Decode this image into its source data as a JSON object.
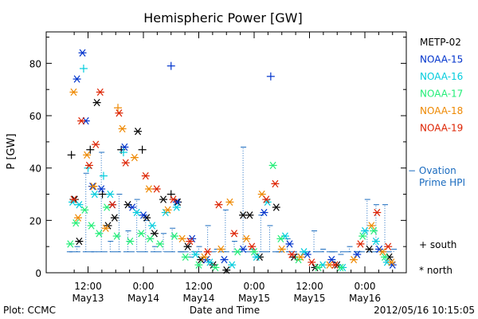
{
  "chart_data": {
    "type": "scatter",
    "title": "Hemispheric Power [GW]",
    "xlabel": "Date and Time",
    "ylabel": "P [GW]",
    "xlim": [
      0,
      4
    ],
    "ylim": [
      0,
      92
    ],
    "grid": false,
    "legend_position": "right",
    "y_ticks": [
      0,
      20,
      40,
      60,
      80
    ],
    "x_ticks": [
      {
        "x": 0.5,
        "line1": "12:00",
        "line2": "May13"
      },
      {
        "x": 1.0,
        "line1": "0:00",
        "line2": "May14"
      },
      {
        "x": 1.5,
        "line1": "12:00",
        "line2": "May14"
      },
      {
        "x": 2.0,
        "line1": "0:00",
        "line2": "May15"
      },
      {
        "x": 2.5,
        "line1": "12:00",
        "line2": "May15"
      },
      {
        "x": 3.0,
        "line1": "0:00",
        "line2": "May16"
      }
    ],
    "series": [
      {
        "name": "METP-02",
        "color": "#000000",
        "points": [
          {
            "x": 0.35,
            "y": 45,
            "m": "+"
          },
          {
            "x": 0.38,
            "y": 28,
            "m": "*"
          },
          {
            "x": 0.42,
            "y": 12,
            "m": "*"
          },
          {
            "x": 0.52,
            "y": 47,
            "m": "+"
          },
          {
            "x": 0.58,
            "y": 65,
            "m": "*"
          },
          {
            "x": 0.63,
            "y": 30,
            "m": "+"
          },
          {
            "x": 0.68,
            "y": 18,
            "m": "*"
          },
          {
            "x": 0.74,
            "y": 21,
            "m": "*"
          },
          {
            "x": 0.8,
            "y": 47,
            "m": "+"
          },
          {
            "x": 0.86,
            "y": 26,
            "m": "*"
          },
          {
            "x": 0.95,
            "y": 54,
            "m": "*"
          },
          {
            "x": 0.99,
            "y": 47,
            "m": "+"
          },
          {
            "x": 1.03,
            "y": 21,
            "m": "*"
          },
          {
            "x": 1.1,
            "y": 15,
            "m": "*"
          },
          {
            "x": 1.18,
            "y": 28,
            "m": "*"
          },
          {
            "x": 1.25,
            "y": 30,
            "m": "+"
          },
          {
            "x": 1.31,
            "y": 27,
            "m": "*"
          },
          {
            "x": 1.4,
            "y": 10,
            "m": "*"
          },
          {
            "x": 1.52,
            "y": 5,
            "m": "*"
          },
          {
            "x": 1.63,
            "y": 3,
            "m": "*"
          },
          {
            "x": 1.75,
            "y": 1,
            "m": "*"
          },
          {
            "x": 1.9,
            "y": 22,
            "m": "*"
          },
          {
            "x": 1.96,
            "y": 22,
            "m": "*"
          },
          {
            "x": 2.05,
            "y": 6,
            "m": "*"
          },
          {
            "x": 2.2,
            "y": 25,
            "m": "*"
          },
          {
            "x": 2.36,
            "y": 6,
            "m": "*"
          },
          {
            "x": 2.55,
            "y": 2,
            "m": "*"
          },
          {
            "x": 2.75,
            "y": 3,
            "m": "*"
          },
          {
            "x": 3.04,
            "y": 9,
            "m": "*"
          },
          {
            "x": 3.22,
            "y": 6,
            "m": "*"
          }
        ]
      },
      {
        "name": "NOAA-15",
        "color": "#0033cc",
        "points": [
          {
            "x": 0.4,
            "y": 74,
            "m": "*"
          },
          {
            "x": 0.45,
            "y": 84,
            "m": "*"
          },
          {
            "x": 0.48,
            "y": 58,
            "m": "*"
          },
          {
            "x": 0.54,
            "y": 33,
            "m": "*"
          },
          {
            "x": 0.62,
            "y": 32,
            "m": "*"
          },
          {
            "x": 0.72,
            "y": 26,
            "m": "*"
          },
          {
            "x": 0.83,
            "y": 48,
            "m": "*"
          },
          {
            "x": 0.9,
            "y": 25,
            "m": "*"
          },
          {
            "x": 1.0,
            "y": 22,
            "m": "*"
          },
          {
            "x": 1.25,
            "y": 79,
            "m": "+"
          },
          {
            "x": 1.3,
            "y": 27,
            "m": "*"
          },
          {
            "x": 1.44,
            "y": 13,
            "m": "*"
          },
          {
            "x": 1.57,
            "y": 5,
            "m": "*"
          },
          {
            "x": 1.73,
            "y": 5,
            "m": "*"
          },
          {
            "x": 1.9,
            "y": 9,
            "m": "*"
          },
          {
            "x": 2.09,
            "y": 23,
            "m": "*"
          },
          {
            "x": 2.15,
            "y": 75,
            "m": "+"
          },
          {
            "x": 2.32,
            "y": 11,
            "m": "*"
          },
          {
            "x": 2.48,
            "y": 7,
            "m": "*"
          },
          {
            "x": 2.7,
            "y": 5,
            "m": "*"
          },
          {
            "x": 2.93,
            "y": 7,
            "m": "*"
          },
          {
            "x": 3.13,
            "y": 9,
            "m": "*"
          },
          {
            "x": 3.25,
            "y": 3,
            "m": "*"
          }
        ]
      },
      {
        "name": "NOAA-16",
        "color": "#00ccdd",
        "points": [
          {
            "x": 0.36,
            "y": 27,
            "m": "*"
          },
          {
            "x": 0.42,
            "y": 26,
            "m": "*"
          },
          {
            "x": 0.46,
            "y": 78,
            "m": "+"
          },
          {
            "x": 0.5,
            "y": 40,
            "m": "+"
          },
          {
            "x": 0.56,
            "y": 30,
            "m": "*"
          },
          {
            "x": 0.64,
            "y": 37,
            "m": "+"
          },
          {
            "x": 0.7,
            "y": 30,
            "m": "*"
          },
          {
            "x": 0.82,
            "y": 46,
            "m": "+"
          },
          {
            "x": 0.94,
            "y": 23,
            "m": "*"
          },
          {
            "x": 1.08,
            "y": 18,
            "m": "*"
          },
          {
            "x": 1.2,
            "y": 23,
            "m": "*"
          },
          {
            "x": 1.3,
            "y": 25,
            "m": "*"
          },
          {
            "x": 1.47,
            "y": 7,
            "m": "*"
          },
          {
            "x": 1.6,
            "y": 4,
            "m": "*"
          },
          {
            "x": 1.8,
            "y": 3,
            "m": "*"
          },
          {
            "x": 2.02,
            "y": 6,
            "m": "*"
          },
          {
            "x": 2.12,
            "y": 27,
            "m": "*"
          },
          {
            "x": 2.28,
            "y": 14,
            "m": "*"
          },
          {
            "x": 2.45,
            "y": 8,
            "m": "*"
          },
          {
            "x": 2.62,
            "y": 3,
            "m": "*"
          },
          {
            "x": 2.8,
            "y": 2,
            "m": "*"
          },
          {
            "x": 3.0,
            "y": 16,
            "m": "*"
          },
          {
            "x": 3.1,
            "y": 12,
            "m": "*"
          },
          {
            "x": 3.2,
            "y": 4,
            "m": "*"
          }
        ]
      },
      {
        "name": "NOAA-17",
        "color": "#22ee77",
        "points": [
          {
            "x": 0.34,
            "y": 11,
            "m": "*"
          },
          {
            "x": 0.39,
            "y": 19,
            "m": "*"
          },
          {
            "x": 0.47,
            "y": 24,
            "m": "*"
          },
          {
            "x": 0.53,
            "y": 18,
            "m": "*"
          },
          {
            "x": 0.6,
            "y": 15,
            "m": "*"
          },
          {
            "x": 0.67,
            "y": 25,
            "m": "*"
          },
          {
            "x": 0.76,
            "y": 14,
            "m": "*"
          },
          {
            "x": 0.88,
            "y": 12,
            "m": "*"
          },
          {
            "x": 0.98,
            "y": 15,
            "m": "*"
          },
          {
            "x": 1.06,
            "y": 13,
            "m": "*"
          },
          {
            "x": 1.15,
            "y": 11,
            "m": "*"
          },
          {
            "x": 1.28,
            "y": 14,
            "m": "*"
          },
          {
            "x": 1.38,
            "y": 6,
            "m": "*"
          },
          {
            "x": 1.5,
            "y": 3,
            "m": "*"
          },
          {
            "x": 1.65,
            "y": 2,
            "m": "*"
          },
          {
            "x": 1.85,
            "y": 8,
            "m": "*"
          },
          {
            "x": 2.0,
            "y": 8,
            "m": "*"
          },
          {
            "x": 2.17,
            "y": 41,
            "m": "*"
          },
          {
            "x": 2.24,
            "y": 13,
            "m": "*"
          },
          {
            "x": 2.4,
            "y": 5,
            "m": "*"
          },
          {
            "x": 2.58,
            "y": 2,
            "m": "*"
          },
          {
            "x": 2.78,
            "y": 2,
            "m": "*"
          },
          {
            "x": 2.98,
            "y": 14,
            "m": "*"
          },
          {
            "x": 3.08,
            "y": 16,
            "m": "*"
          },
          {
            "x": 3.18,
            "y": 6,
            "m": "*"
          }
        ]
      },
      {
        "name": "NOAA-18",
        "color": "#ee8800",
        "points": [
          {
            "x": 0.37,
            "y": 69,
            "m": "*"
          },
          {
            "x": 0.41,
            "y": 21,
            "m": "*"
          },
          {
            "x": 0.49,
            "y": 45,
            "m": "*"
          },
          {
            "x": 0.55,
            "y": 33,
            "m": "*"
          },
          {
            "x": 0.66,
            "y": 17,
            "m": "*"
          },
          {
            "x": 0.77,
            "y": 63,
            "m": "+"
          },
          {
            "x": 0.81,
            "y": 55,
            "m": "*"
          },
          {
            "x": 0.92,
            "y": 44,
            "m": "*"
          },
          {
            "x": 1.05,
            "y": 32,
            "m": "*"
          },
          {
            "x": 1.22,
            "y": 24,
            "m": "*"
          },
          {
            "x": 1.35,
            "y": 13,
            "m": "*"
          },
          {
            "x": 1.55,
            "y": 6,
            "m": "*"
          },
          {
            "x": 1.7,
            "y": 9,
            "m": "*"
          },
          {
            "x": 1.78,
            "y": 27,
            "m": "*"
          },
          {
            "x": 1.93,
            "y": 13,
            "m": "*"
          },
          {
            "x": 2.07,
            "y": 30,
            "m": "*"
          },
          {
            "x": 2.25,
            "y": 9,
            "m": "*"
          },
          {
            "x": 2.42,
            "y": 6,
            "m": "*"
          },
          {
            "x": 2.68,
            "y": 3,
            "m": "*"
          },
          {
            "x": 2.9,
            "y": 5,
            "m": "*"
          },
          {
            "x": 3.06,
            "y": 18,
            "m": "*"
          },
          {
            "x": 3.16,
            "y": 8,
            "m": "*"
          },
          {
            "x": 3.24,
            "y": 4,
            "m": "*"
          }
        ]
      },
      {
        "name": "NOAA-19",
        "color": "#dd2200",
        "points": [
          {
            "x": 0.37,
            "y": 28,
            "m": "*"
          },
          {
            "x": 0.44,
            "y": 58,
            "m": "*"
          },
          {
            "x": 0.51,
            "y": 41,
            "m": "*"
          },
          {
            "x": 0.57,
            "y": 49,
            "m": "*"
          },
          {
            "x": 0.61,
            "y": 69,
            "m": "*"
          },
          {
            "x": 0.72,
            "y": 26,
            "m": "*"
          },
          {
            "x": 0.78,
            "y": 61,
            "m": "*"
          },
          {
            "x": 0.84,
            "y": 42,
            "m": "*"
          },
          {
            "x": 1.02,
            "y": 37,
            "m": "*"
          },
          {
            "x": 1.12,
            "y": 32,
            "m": "*"
          },
          {
            "x": 1.27,
            "y": 28,
            "m": "*"
          },
          {
            "x": 1.42,
            "y": 12,
            "m": "*"
          },
          {
            "x": 1.58,
            "y": 8,
            "m": "*"
          },
          {
            "x": 1.68,
            "y": 26,
            "m": "*"
          },
          {
            "x": 1.82,
            "y": 15,
            "m": "*"
          },
          {
            "x": 1.98,
            "y": 10,
            "m": "*"
          },
          {
            "x": 2.11,
            "y": 28,
            "m": "*"
          },
          {
            "x": 2.19,
            "y": 34,
            "m": "*"
          },
          {
            "x": 2.34,
            "y": 7,
            "m": "*"
          },
          {
            "x": 2.52,
            "y": 4,
            "m": "*"
          },
          {
            "x": 2.73,
            "y": 3,
            "m": "*"
          },
          {
            "x": 2.96,
            "y": 11,
            "m": "*"
          },
          {
            "x": 3.11,
            "y": 23,
            "m": "*"
          },
          {
            "x": 3.21,
            "y": 10,
            "m": "*"
          }
        ]
      }
    ],
    "ovation": {
      "name": "Ovation Prime HPI",
      "legend_line1": "− Ovation",
      "legend_line2": "Prime HPI",
      "color": "#1a6bbf",
      "x": [
        0.33,
        0.4,
        0.48,
        0.55,
        0.62,
        0.7,
        0.78,
        0.86,
        0.94,
        1.02,
        1.1,
        1.18,
        1.26,
        1.34,
        1.42,
        1.5,
        1.58,
        1.66,
        1.74,
        1.82,
        1.9,
        1.98,
        2.06,
        2.14,
        2.22,
        2.3,
        2.38,
        2.46,
        2.54,
        2.62,
        2.7,
        2.78,
        2.86,
        2.94,
        3.02,
        3.1,
        3.18,
        3.26
      ],
      "y": [
        8,
        10,
        38,
        8,
        46,
        12,
        30,
        16,
        28,
        20,
        10,
        15,
        17,
        8,
        6,
        10,
        18,
        9,
        24,
        12,
        48,
        9,
        22,
        18,
        8,
        13,
        7,
        8,
        16,
        9,
        8,
        7,
        10,
        8,
        28,
        26,
        26,
        9
      ],
      "baseline": 8
    },
    "marker_legend": {
      "plus": "+ south",
      "star": "* north"
    },
    "footer_left": "Plot: CCMC",
    "footer_right": "2012/05/16 10:15:05"
  }
}
